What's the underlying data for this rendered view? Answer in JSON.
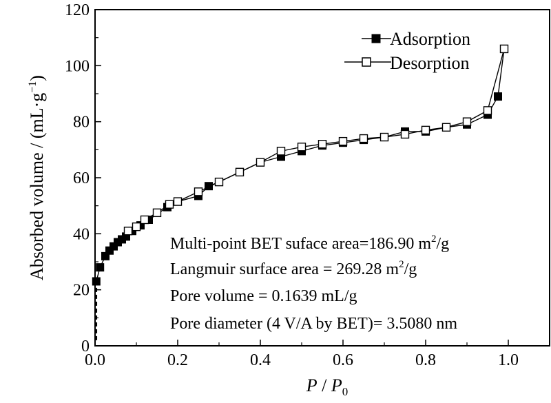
{
  "chart_data": {
    "type": "line",
    "xlabel": {
      "italic1": "P",
      "sep": " / ",
      "italic2": "P",
      "sub": "0"
    },
    "ylabel": {
      "main": "Absorbed volume / (mL·g",
      "sup": "−1",
      "end": ")"
    },
    "xlim": [
      0,
      1.1
    ],
    "ylim": [
      0,
      120
    ],
    "xticks": [
      "0.0",
      "0.2",
      "0.4",
      "0.6",
      "0.8",
      "1.0"
    ],
    "xtick_values": [
      0,
      0.2,
      0.4,
      0.6,
      0.8,
      1.0
    ],
    "yticks": [
      "0",
      "20",
      "40",
      "60",
      "80",
      "100",
      "120"
    ],
    "ytick_values": [
      0,
      20,
      40,
      60,
      80,
      100,
      120
    ],
    "grid": false,
    "legend_position": "top-right",
    "series": [
      {
        "name": "Adsorption",
        "marker": "filled-square",
        "x": [
          0.003,
          0.012,
          0.025,
          0.035,
          0.045,
          0.055,
          0.065,
          0.075,
          0.09,
          0.11,
          0.13,
          0.175,
          0.2,
          0.25,
          0.275,
          0.3,
          0.35,
          0.4,
          0.45,
          0.5,
          0.55,
          0.6,
          0.65,
          0.7,
          0.75,
          0.8,
          0.85,
          0.9,
          0.95,
          0.975,
          0.99
        ],
        "y": [
          23,
          28,
          32,
          34,
          35.5,
          37,
          38,
          39,
          41,
          43,
          45,
          49.5,
          51.5,
          53.5,
          57,
          58.5,
          62,
          65.5,
          67.5,
          69.5,
          71.5,
          72.5,
          73.5,
          74.5,
          76.5,
          76.5,
          78,
          79,
          82.5,
          89,
          106
        ]
      },
      {
        "name": "Desorption",
        "marker": "open-square",
        "x": [
          0.99,
          0.95,
          0.9,
          0.85,
          0.8,
          0.75,
          0.7,
          0.65,
          0.6,
          0.55,
          0.5,
          0.45,
          0.4,
          0.35,
          0.3,
          0.25,
          0.2,
          0.18,
          0.15,
          0.12,
          0.1,
          0.08
        ],
        "y": [
          106,
          84,
          80,
          78,
          77,
          75.5,
          74.5,
          74,
          73,
          72,
          71,
          69.5,
          65.5,
          62,
          58.5,
          55,
          51.5,
          50.5,
          47.5,
          45,
          42.5,
          41
        ]
      }
    ],
    "dashed_segment": {
      "x": [
        0.003,
        0.003
      ],
      "y": [
        2,
        23
      ]
    },
    "annotations": {
      "line1": {
        "text": "Multi-point BET suface area=186.90 m",
        "sup": "2",
        "tail": "/g"
      },
      "line2": {
        "text": "Langmuir surface area = 269.28 m",
        "sup": "2",
        "tail": "/g"
      },
      "line3": {
        "text": "Pore volume = 0.1639 mL/g"
      },
      "line4": {
        "text": "Pore diameter (4 V/A by BET)= 3.5080 nm"
      }
    }
  }
}
